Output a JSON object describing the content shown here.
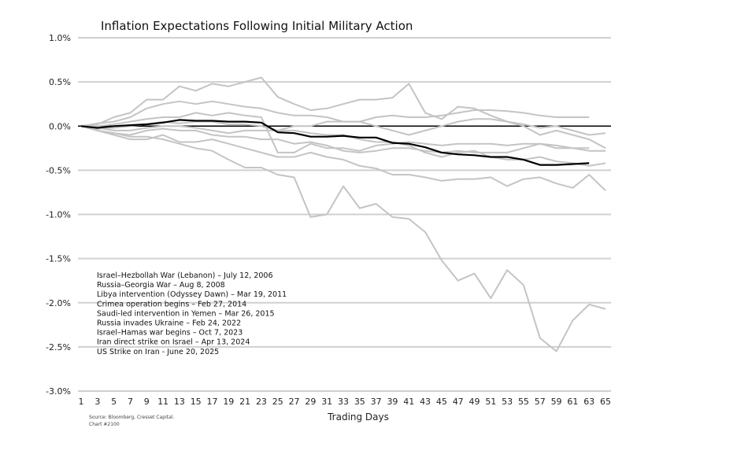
{
  "chart_data": {
    "type": "line",
    "title": "Inflation Expectations Following Initial Military Action",
    "xlabel": "Trading Days",
    "ylabel": "",
    "source": "Source: Bloomberg, Cresset Capital.",
    "chart_id": "Chart #2100",
    "ylim": [
      -3.0,
      1.0
    ],
    "yticks": [
      "1.0%",
      "0.5%",
      "0.0%",
      "-0.5%",
      "-1.0%",
      "-1.5%",
      "-2.0%",
      "-2.5%",
      "-3.0%"
    ],
    "ytick_values": [
      1.0,
      0.5,
      0.0,
      -0.5,
      -1.0,
      -1.5,
      -2.0,
      -2.5,
      -3.0
    ],
    "xticks": [
      "1",
      "3",
      "5",
      "7",
      "9",
      "11",
      "13",
      "15",
      "17",
      "19",
      "21",
      "23",
      "25",
      "27",
      "29",
      "31",
      "33",
      "35",
      "37",
      "39",
      "41",
      "43",
      "45",
      "47",
      "49",
      "51",
      "53",
      "55",
      "57",
      "59",
      "61",
      "63",
      "65"
    ],
    "xlim": [
      1,
      65
    ],
    "grid": true,
    "legend_placement": "lower-left",
    "legend": [
      "Israel–Hezbollah War (Lebanon) – July 12, 2006",
      "Russia–Georgia War – Aug 8, 2008",
      "Libya intervention (Odyssey Dawn) – Mar 19, 2011",
      "Crimea operation begins – Feb 27, 2014",
      "Saudi-led intervention in Yemen – Mar 26, 2015",
      "Russia invades Ukraine – Feb 24, 2022",
      "Israel–Hamas war begins – Oct 7, 2023",
      "Iran direct strike on Israel – Apr 13, 2024",
      "US Strike on Iran - June 20, 2025"
    ],
    "colors": {
      "highlight": "#000000",
      "other": "#c4c4c4",
      "grid": "#d0d0d0"
    },
    "x": [
      1,
      3,
      5,
      7,
      9,
      11,
      13,
      15,
      17,
      19,
      21,
      23,
      25,
      27,
      29,
      31,
      33,
      35,
      37,
      39,
      41,
      43,
      45,
      47,
      49,
      51,
      53,
      55,
      57,
      59,
      61,
      63,
      65
    ],
    "gray_series": [
      [
        0,
        -0.05,
        -0.08,
        -0.12,
        -0.12,
        -0.15,
        -0.2,
        -0.25,
        -0.28,
        -0.38,
        -0.47,
        -0.47,
        -0.55,
        -0.58,
        -1.03,
        -1.0,
        -0.68,
        -0.93,
        -0.88,
        -1.03,
        -1.05,
        -1.2,
        -1.52,
        -1.75,
        -1.67,
        -1.95,
        -1.63,
        -1.8,
        -2.4,
        -2.55,
        -2.2,
        -2.02,
        -2.07
      ],
      [
        0,
        0.02,
        0.1,
        0.15,
        0.3,
        0.3,
        0.45,
        0.4,
        0.48,
        0.45,
        0.5,
        0.55,
        0.33,
        0.25,
        0.18,
        0.2,
        0.25,
        0.3,
        0.3,
        0.32,
        0.48,
        0.15,
        0.08,
        0.22,
        0.2,
        0.12,
        0.05,
        0.0,
        -0.1,
        -0.05,
        -0.1,
        -0.15,
        -0.25
      ],
      [
        0,
        0.03,
        0.05,
        0.1,
        0.2,
        0.25,
        0.28,
        0.25,
        0.28,
        0.25,
        0.22,
        0.2,
        0.15,
        0.12,
        0.12,
        0.1,
        0.05,
        0.05,
        0.1,
        0.12,
        0.1,
        0.1,
        0.12,
        0.15,
        0.18,
        0.18,
        0.17,
        0.15,
        0.12,
        0.1,
        0.1,
        0.1,
        null
      ],
      [
        0,
        -0.05,
        -0.1,
        -0.15,
        -0.15,
        -0.1,
        -0.18,
        -0.18,
        -0.15,
        -0.2,
        -0.25,
        -0.3,
        -0.35,
        -0.35,
        -0.3,
        -0.35,
        -0.38,
        -0.45,
        -0.48,
        -0.55,
        -0.55,
        -0.58,
        -0.62,
        -0.6,
        -0.6,
        -0.58,
        -0.68,
        -0.6,
        -0.58,
        -0.65,
        -0.7,
        -0.55,
        -0.73
      ],
      [
        0,
        0,
        0.02,
        0.05,
        0.08,
        0.1,
        0.1,
        0.15,
        0.12,
        0.15,
        0.12,
        0.1,
        -0.3,
        -0.3,
        -0.2,
        -0.25,
        -0.25,
        -0.28,
        -0.22,
        -0.2,
        -0.18,
        -0.2,
        -0.22,
        -0.2,
        -0.2,
        -0.2,
        -0.22,
        -0.2,
        -0.2,
        -0.25,
        -0.25,
        -0.25,
        null
      ],
      [
        0,
        -0.02,
        -0.05,
        -0.05,
        -0.02,
        0,
        0,
        -0.02,
        -0.05,
        -0.08,
        -0.05,
        -0.05,
        -0.05,
        0,
        0,
        0.05,
        0.05,
        0.05,
        0.0,
        -0.05,
        -0.1,
        -0.05,
        0.0,
        0.05,
        0.08,
        0.08,
        0.05,
        0.02,
        -0.02,
        0.0,
        -0.05,
        -0.1,
        -0.08
      ],
      [
        0,
        -0.05,
        -0.08,
        -0.1,
        -0.05,
        -0.03,
        -0.05,
        -0.05,
        -0.1,
        -0.12,
        -0.12,
        -0.15,
        -0.15,
        -0.2,
        -0.18,
        -0.22,
        -0.28,
        -0.3,
        -0.28,
        -0.25,
        -0.25,
        -0.28,
        -0.3,
        -0.28,
        -0.3,
        -0.3,
        -0.3,
        -0.25,
        -0.2,
        -0.22,
        -0.25,
        -0.28,
        -0.28
      ],
      [
        0,
        -0.03,
        -0.02,
        0,
        0.02,
        0.05,
        0.03,
        0.05,
        0.05,
        0.02,
        0.02,
        0.0,
        -0.05,
        -0.05,
        -0.08,
        -0.1,
        -0.1,
        -0.15,
        -0.18,
        -0.18,
        -0.22,
        -0.3,
        -0.35,
        -0.3,
        -0.28,
        -0.35,
        -0.38,
        -0.38,
        -0.35,
        -0.4,
        -0.42,
        -0.45,
        -0.42
      ]
    ],
    "highlight_series": {
      "name": "US Strike on Iran - June 20, 2025",
      "values": [
        0,
        -0.02,
        0,
        0.01,
        0.02,
        0.04,
        0.07,
        0.06,
        0.06,
        0.05,
        0.05,
        0.04,
        -0.07,
        -0.08,
        -0.12,
        -0.12,
        -0.11,
        -0.13,
        -0.13,
        -0.19,
        -0.2,
        -0.24,
        -0.3,
        -0.32,
        -0.33,
        -0.35,
        -0.35,
        -0.38,
        -0.44,
        -0.44,
        -0.43,
        -0.42,
        null
      ]
    }
  }
}
